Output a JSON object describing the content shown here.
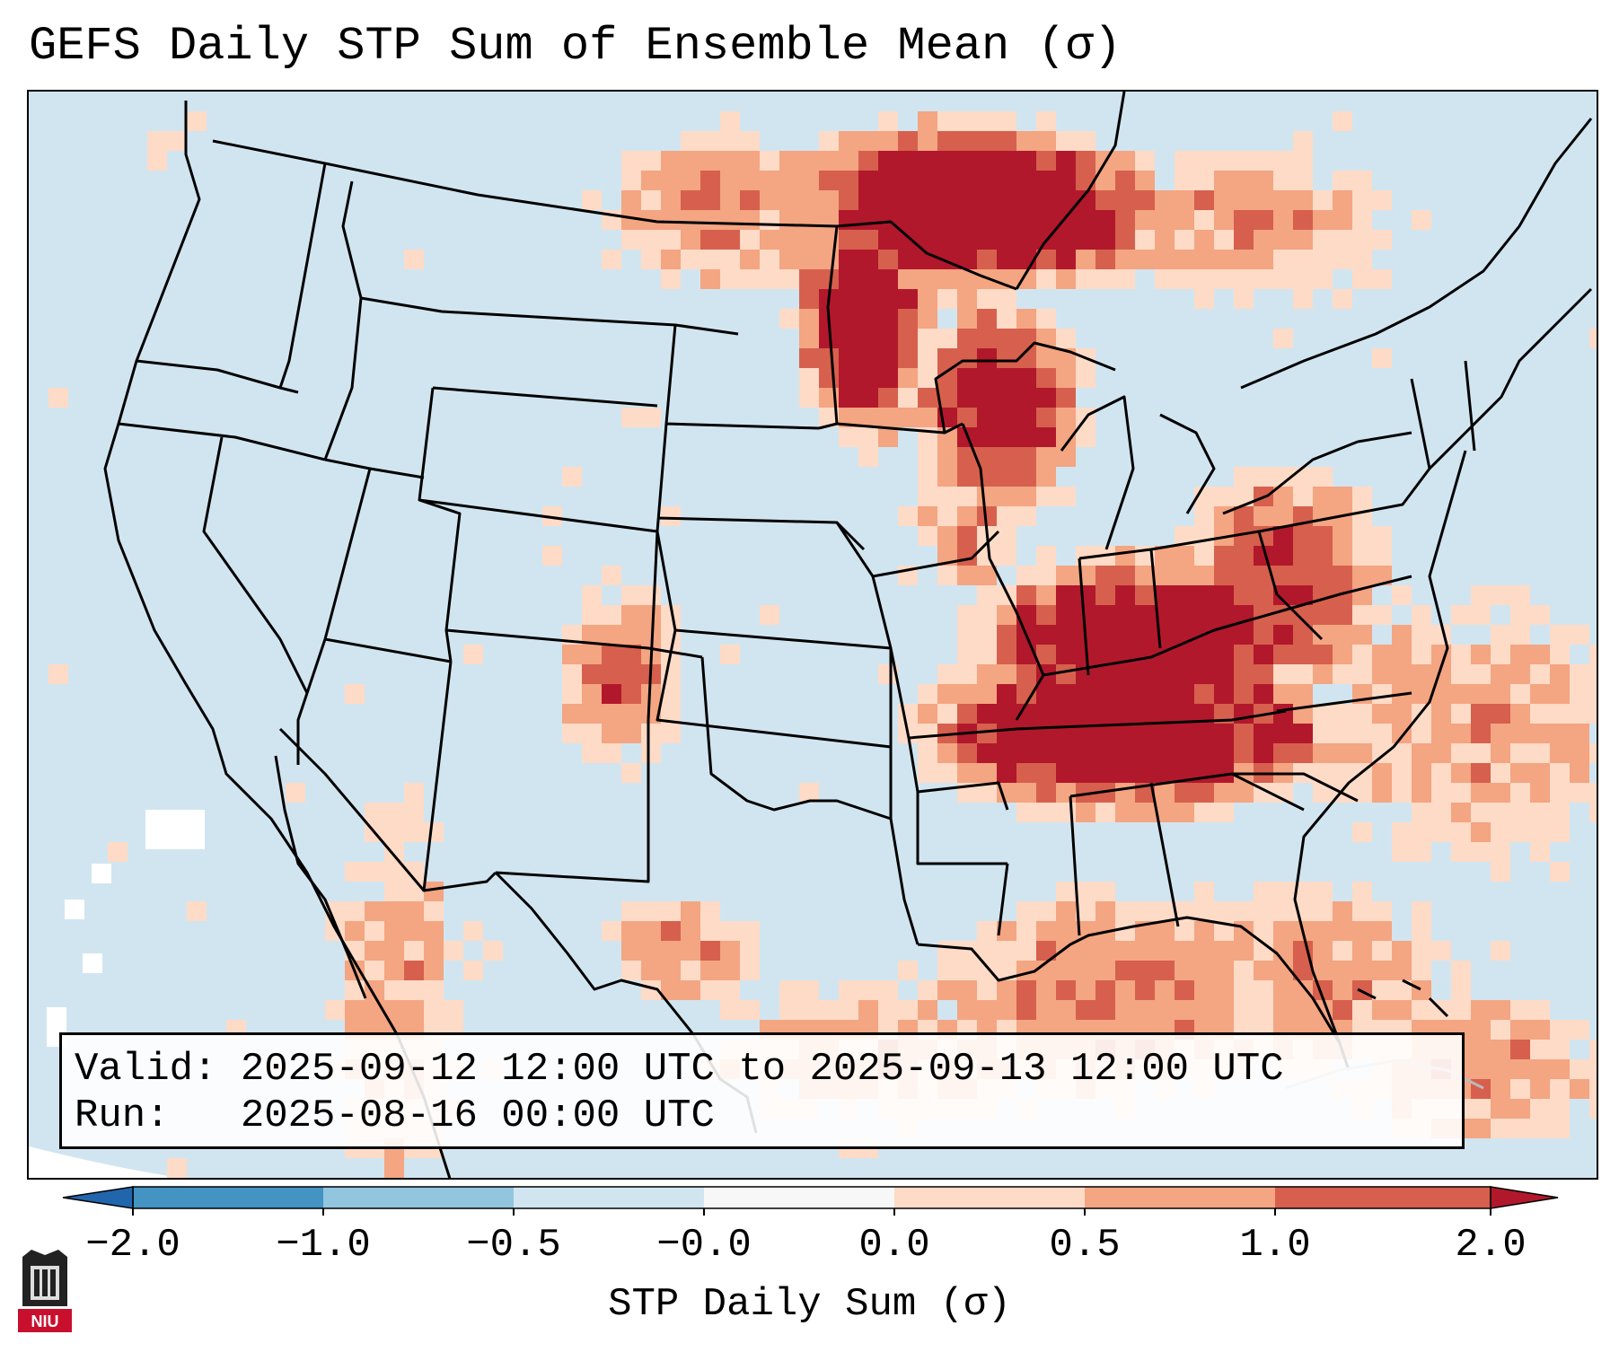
{
  "title": "GEFS Daily STP Sum of Ensemble Mean (σ)",
  "info": {
    "valid_label": "Valid:",
    "valid_value": "2025-09-12 12:00 UTC to 2025-09-13 12:00 UTC",
    "run_label": "Run:",
    "run_value": "2025-08-16 00:00 UTC"
  },
  "colorbar": {
    "label": "STP Daily Sum (σ)",
    "ticks": [
      "−2.0",
      "−1.0",
      "−0.5",
      "−0.0",
      "0.0",
      "0.5",
      "1.0",
      "2.0"
    ],
    "colors": {
      "below_min": "#2166ac",
      "bin_-2_-1": "#4393c3",
      "bin_-1_-0.5": "#92c5de",
      "bin_-0.5_0": "#d1e5f0",
      "bin_0_0": "#f7f7f7",
      "bin_0_0.5": "#fddbc7",
      "bin_0.5_1": "#f4a582",
      "bin_1_2": "#d6604d",
      "above_max": "#b2182b"
    }
  },
  "map": {
    "background_color": "#d1e5f0",
    "boundary_color": "#000000",
    "region": "Contiguous United States, northern Mexico, southern Canada, Gulf of Mexico, Caribbean"
  },
  "logo": {
    "text": "NIU",
    "color": "#c8102e"
  }
}
